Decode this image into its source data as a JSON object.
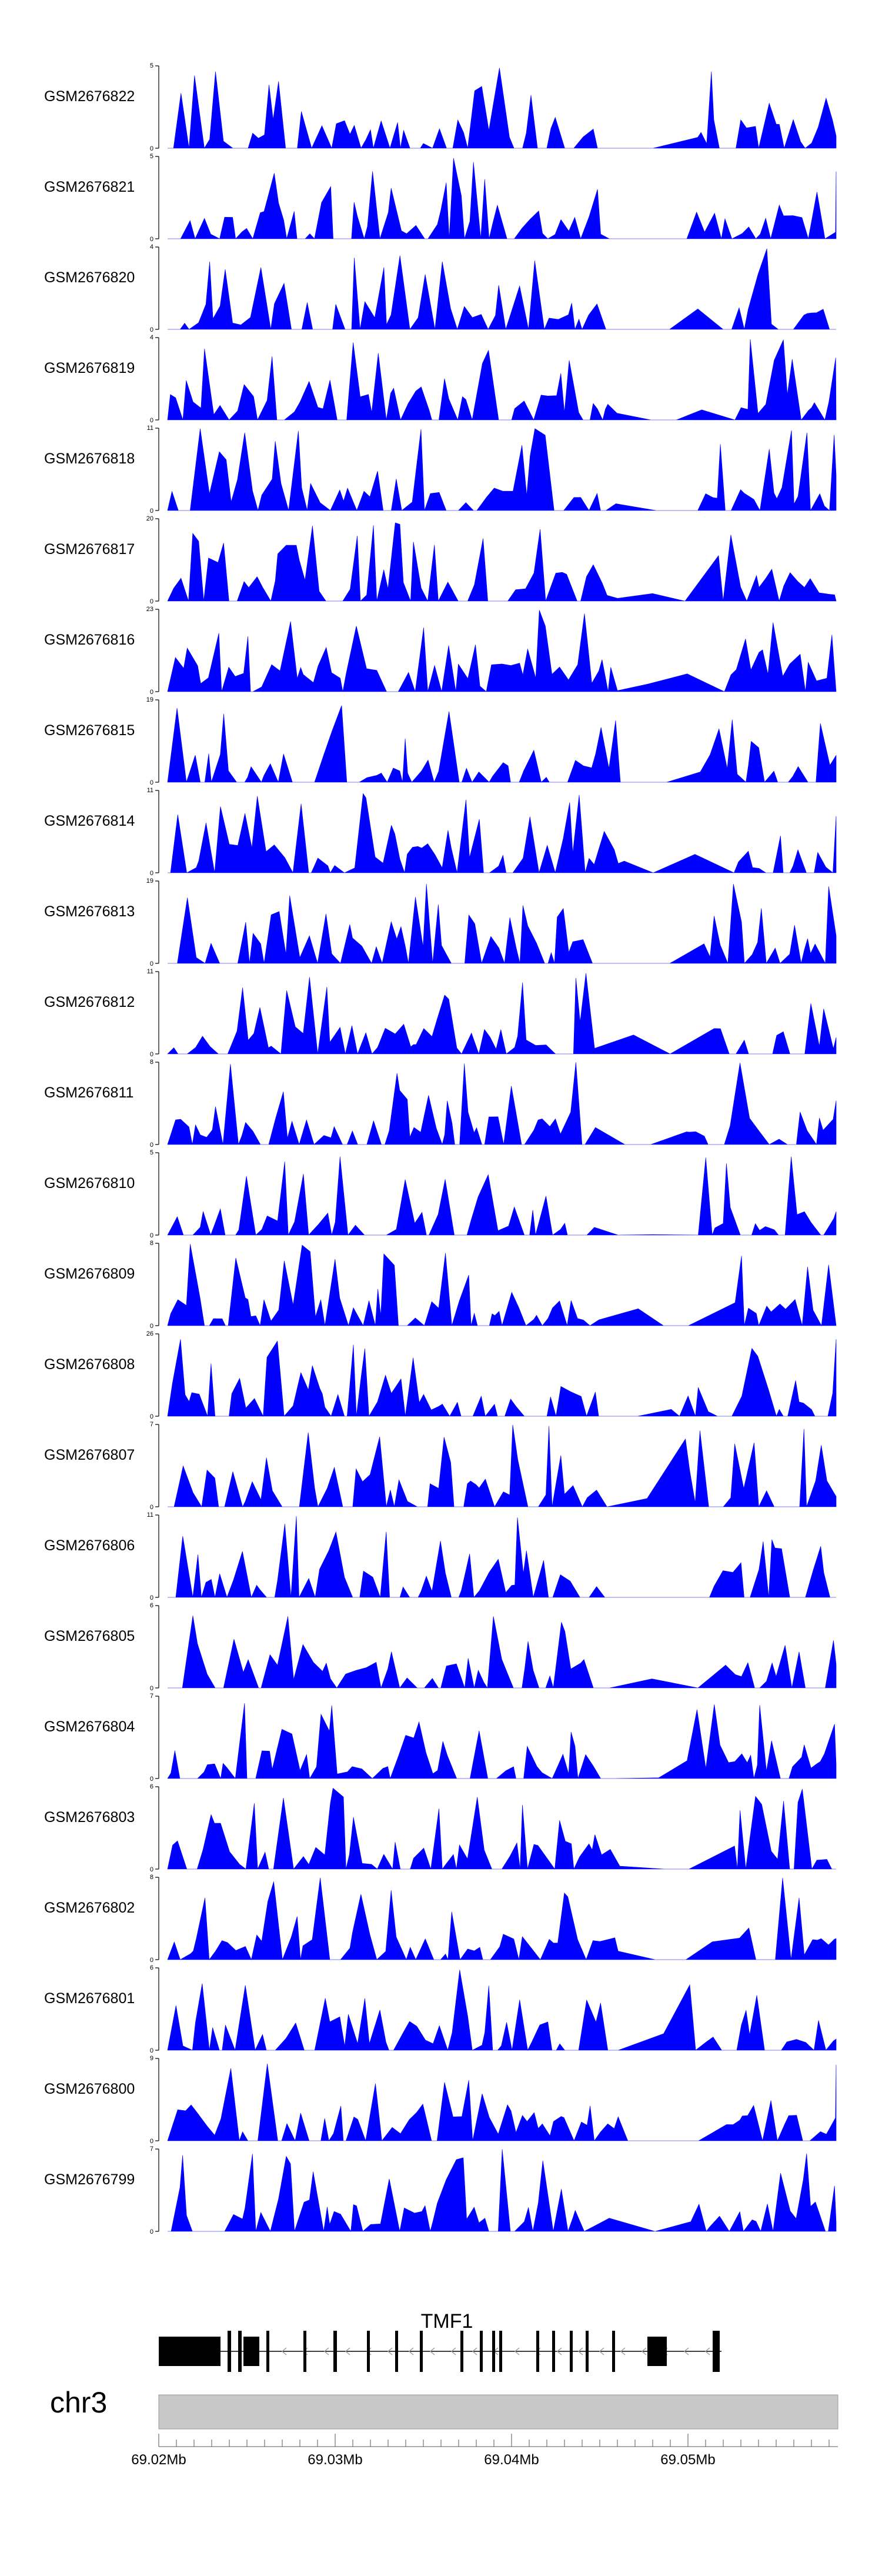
{
  "chart_data": {
    "type": "area",
    "region": {
      "chromosome": "chr3",
      "start_mb": 69.02,
      "end_mb": 69.0585
    },
    "x_ticks": [
      "69.02Mb",
      "69.03Mb",
      "69.04Mb",
      "69.05Mb"
    ],
    "x_tick_values": [
      69.02,
      69.03,
      69.04,
      69.05
    ],
    "fill_color": "#0000ff",
    "tracks": [
      {
        "name": "GSM2676822",
        "ymax": "5",
        "ymin": "0"
      },
      {
        "name": "GSM2676821",
        "ymax": "5",
        "ymin": "0"
      },
      {
        "name": "GSM2676820",
        "ymax": "4",
        "ymin": "0"
      },
      {
        "name": "GSM2676819",
        "ymax": "4",
        "ymin": "0"
      },
      {
        "name": "GSM2676818",
        "ymax": "11",
        "ymin": "0"
      },
      {
        "name": "GSM2676817",
        "ymax": "20",
        "ymin": "0"
      },
      {
        "name": "GSM2676816",
        "ymax": "23",
        "ymin": "0"
      },
      {
        "name": "GSM2676815",
        "ymax": "19",
        "ymin": "0"
      },
      {
        "name": "GSM2676814",
        "ymax": "11",
        "ymin": "0"
      },
      {
        "name": "GSM2676813",
        "ymax": "19",
        "ymin": "0"
      },
      {
        "name": "GSM2676812",
        "ymax": "11",
        "ymin": "0"
      },
      {
        "name": "GSM2676811",
        "ymax": "8",
        "ymin": "0"
      },
      {
        "name": "GSM2676810",
        "ymax": "5",
        "ymin": "0"
      },
      {
        "name": "GSM2676809",
        "ymax": "8",
        "ymin": "0"
      },
      {
        "name": "GSM2676808",
        "ymax": "26",
        "ymin": "0"
      },
      {
        "name": "GSM2676807",
        "ymax": "7",
        "ymin": "0"
      },
      {
        "name": "GSM2676806",
        "ymax": "11",
        "ymin": "0"
      },
      {
        "name": "GSM2676805",
        "ymax": "6",
        "ymin": "0"
      },
      {
        "name": "GSM2676804",
        "ymax": "7",
        "ymin": "0"
      },
      {
        "name": "GSM2676803",
        "ymax": "6",
        "ymin": "0"
      },
      {
        "name": "GSM2676802",
        "ymax": "8",
        "ymin": "0"
      },
      {
        "name": "GSM2676801",
        "ymax": "6",
        "ymin": "0"
      },
      {
        "name": "GSM2676800",
        "ymax": "9",
        "ymin": "0"
      },
      {
        "name": "GSM2676799",
        "ymax": "7",
        "ymin": "0"
      }
    ],
    "gene": {
      "name": "TMF1",
      "strand": "-",
      "exons_mb": [
        [
          69.02,
          69.0235
        ],
        [
          69.0239,
          69.0241
        ],
        [
          69.0245,
          69.0247
        ],
        [
          69.0248,
          69.0257
        ],
        [
          69.0261,
          69.0262
        ],
        [
          69.0282,
          69.0283
        ],
        [
          69.0299,
          69.0301
        ],
        [
          69.0318,
          69.0319
        ],
        [
          69.0334,
          69.0335
        ],
        [
          69.0348,
          69.0349
        ],
        [
          69.0371,
          69.0372
        ],
        [
          69.0382,
          69.0383
        ],
        [
          69.0389,
          69.039
        ],
        [
          69.0393,
          69.0394
        ],
        [
          69.0414,
          69.0415
        ],
        [
          69.0423,
          69.0424
        ],
        [
          69.0433,
          69.0434
        ],
        [
          69.0442,
          69.0443
        ],
        [
          69.0457,
          69.0458
        ],
        [
          69.0477,
          69.0488
        ],
        [
          69.0514,
          69.0518
        ]
      ],
      "intron_start_mb": 69.02,
      "intron_end_mb": 69.0519
    },
    "chromosome_label": "chr3"
  }
}
